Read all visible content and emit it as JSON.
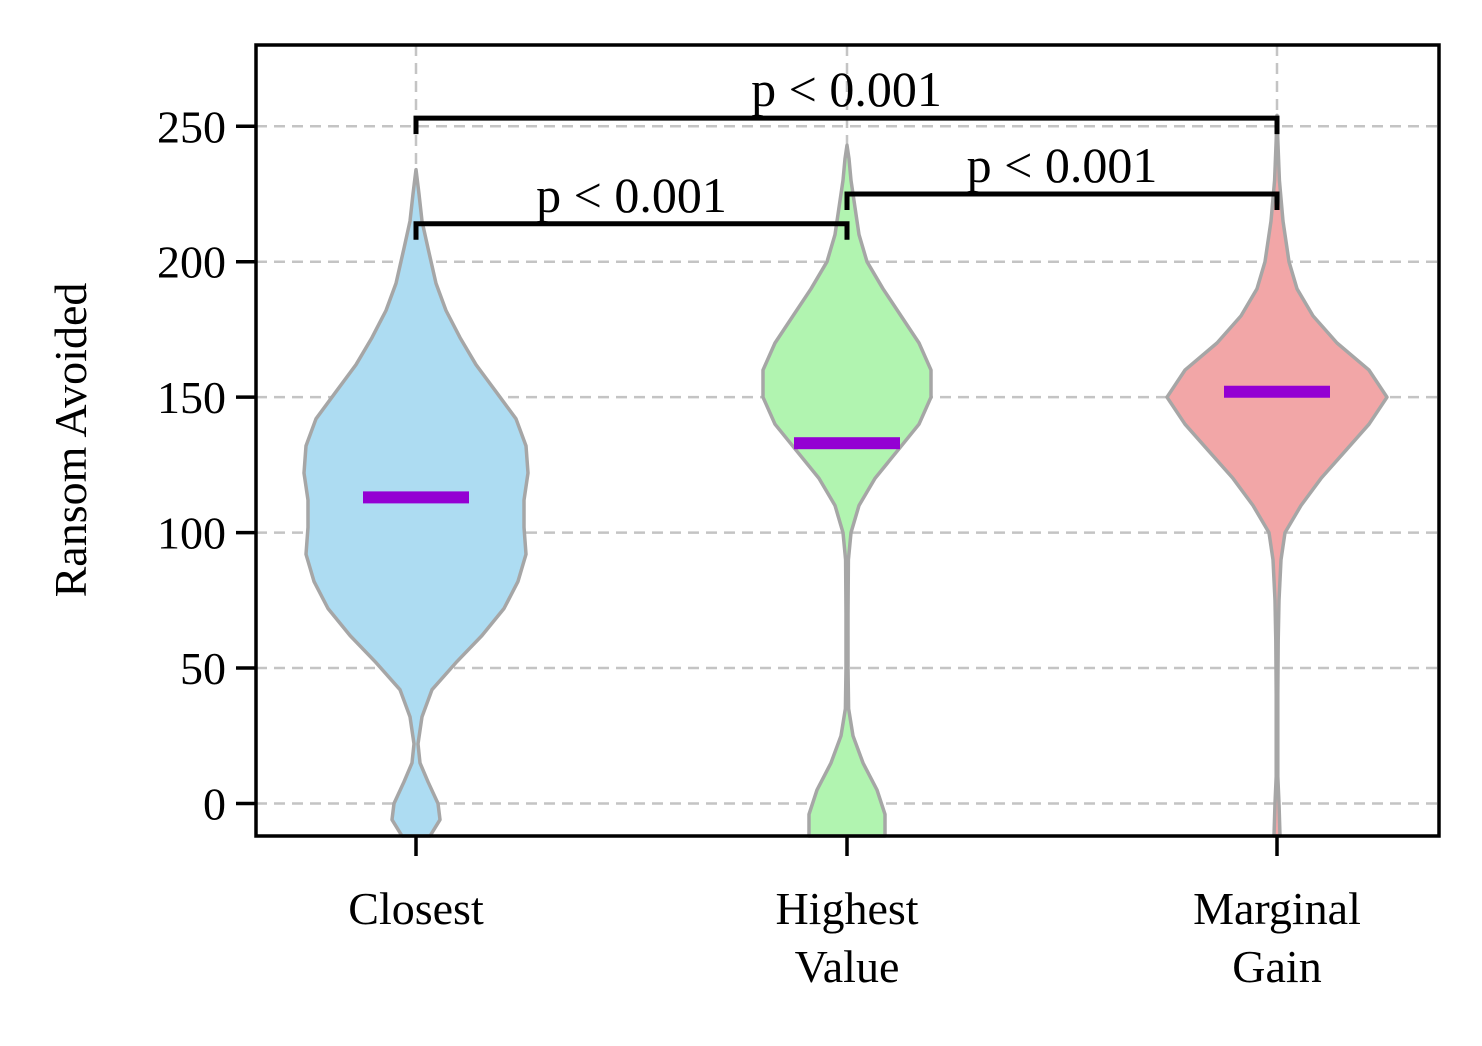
{
  "chart_data": {
    "type": "violin",
    "ylabel": "Ransom Avoided",
    "xlabel": "",
    "ylim": [
      -12,
      280
    ],
    "yticks": [
      0,
      50,
      100,
      150,
      200,
      250
    ],
    "grid": true,
    "categories": [
      {
        "lines": [
          "Closest"
        ]
      },
      {
        "lines": [
          "Highest",
          "Value"
        ]
      },
      {
        "lines": [
          "Marginal",
          "Gain"
        ]
      }
    ],
    "violins": [
      {
        "fill": "#ADDCF2",
        "median": 113,
        "profile": [
          [
            -12,
            7
          ],
          [
            -6,
            12
          ],
          [
            0,
            11
          ],
          [
            8,
            6
          ],
          [
            15,
            2
          ],
          [
            22,
            1
          ],
          [
            32,
            3
          ],
          [
            42,
            8
          ],
          [
            52,
            20
          ],
          [
            62,
            33
          ],
          [
            72,
            44
          ],
          [
            82,
            51
          ],
          [
            92,
            55
          ],
          [
            102,
            54
          ],
          [
            112,
            54
          ],
          [
            122,
            56
          ],
          [
            132,
            55
          ],
          [
            142,
            50
          ],
          [
            152,
            40
          ],
          [
            162,
            30
          ],
          [
            172,
            22
          ],
          [
            182,
            15
          ],
          [
            192,
            10
          ],
          [
            205,
            6
          ],
          [
            215,
            3
          ],
          [
            225,
            1.5
          ],
          [
            234,
            0
          ]
        ]
      },
      {
        "fill": "#B1F4B0",
        "median": 133,
        "profile": [
          [
            -12,
            19
          ],
          [
            -4,
            19
          ],
          [
            5,
            15
          ],
          [
            15,
            8
          ],
          [
            25,
            3
          ],
          [
            35,
            0.8
          ],
          [
            50,
            0.5
          ],
          [
            70,
            0.5
          ],
          [
            90,
            0.7
          ],
          [
            100,
            2
          ],
          [
            110,
            6
          ],
          [
            120,
            14
          ],
          [
            130,
            25
          ],
          [
            140,
            36
          ],
          [
            150,
            42
          ],
          [
            160,
            42
          ],
          [
            170,
            36
          ],
          [
            180,
            27
          ],
          [
            190,
            18
          ],
          [
            200,
            10
          ],
          [
            210,
            6
          ],
          [
            220,
            4
          ],
          [
            230,
            2
          ],
          [
            238,
            1
          ],
          [
            243,
            0
          ]
        ]
      },
      {
        "fill": "#F2A6A7",
        "median": 152,
        "profile": [
          [
            -12,
            1.5
          ],
          [
            0,
            1
          ],
          [
            10,
            0.4
          ],
          [
            20,
            0.4
          ],
          [
            40,
            0.4
          ],
          [
            60,
            0.6
          ],
          [
            75,
            1
          ],
          [
            90,
            2
          ],
          [
            100,
            4
          ],
          [
            110,
            12
          ],
          [
            120,
            22
          ],
          [
            130,
            34
          ],
          [
            140,
            46
          ],
          [
            150,
            55
          ],
          [
            160,
            46
          ],
          [
            170,
            30
          ],
          [
            180,
            18
          ],
          [
            190,
            10
          ],
          [
            200,
            6
          ],
          [
            215,
            3
          ],
          [
            230,
            1.2
          ],
          [
            245,
            0.4
          ],
          [
            254,
            0
          ]
        ]
      }
    ],
    "annotations": [
      {
        "text": "p < 0.001",
        "from": 0,
        "to": 1,
        "y": 214
      },
      {
        "text": "p < 0.001",
        "from": 1,
        "to": 2,
        "y": 225
      },
      {
        "text": "p < 0.001",
        "from": 0,
        "to": 2,
        "y": 253
      }
    ]
  }
}
